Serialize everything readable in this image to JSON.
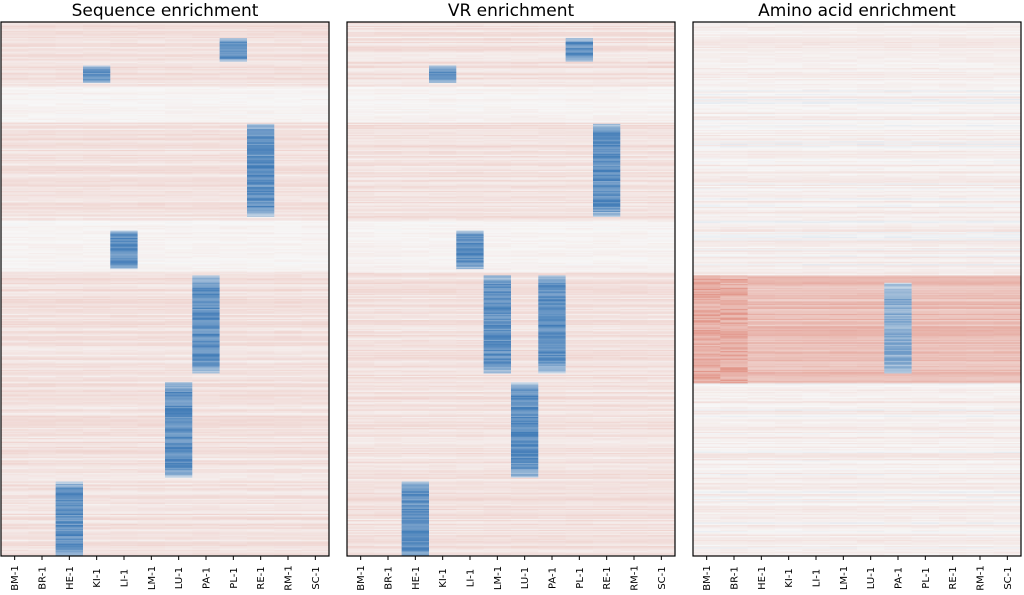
{
  "chart_data": [
    {
      "type": "heatmap",
      "title": "Sequence enrichment",
      "xlabel": "",
      "ylabel": "",
      "categories": [
        "BM-1",
        "BR-1",
        "HE-1",
        "KI-1",
        "LI-1",
        "LM-1",
        "LU-1",
        "PA-1",
        "PL-1",
        "RE-1",
        "RM-1",
        "SC-1"
      ],
      "colormap": "diverging blue-white-red",
      "rows": 430,
      "enriched_blocks": [
        {
          "tissue": "PL-1",
          "row_range": [
            13,
            31
          ]
        },
        {
          "tissue": "KI-1",
          "row_range": [
            35,
            48
          ]
        },
        {
          "tissue": "RE-1",
          "row_range": [
            82,
            156
          ]
        },
        {
          "tissue": "LI-1",
          "row_range": [
            168,
            198
          ]
        },
        {
          "tissue": "PA-1",
          "row_range": [
            204,
            282
          ]
        },
        {
          "tissue": "LU-1",
          "row_range": [
            290,
            366
          ]
        },
        {
          "tissue": "HE-1",
          "row_range": [
            370,
            430
          ]
        }
      ]
    },
    {
      "type": "heatmap",
      "title": "VR enrichment",
      "xlabel": "",
      "ylabel": "",
      "categories": [
        "BM-1",
        "BR-1",
        "HE-1",
        "KI-1",
        "LI-1",
        "LM-1",
        "LU-1",
        "PA-1",
        "PL-1",
        "RE-1",
        "RM-1",
        "SC-1"
      ],
      "colormap": "diverging blue-white-red",
      "rows": 430,
      "enriched_blocks": [
        {
          "tissue": "PL-1",
          "row_range": [
            13,
            31
          ]
        },
        {
          "tissue": "KI-1",
          "row_range": [
            35,
            48
          ]
        },
        {
          "tissue": "RE-1",
          "row_range": [
            82,
            156
          ]
        },
        {
          "tissue": "LI-1",
          "row_range": [
            168,
            198
          ]
        },
        {
          "tissue": "PA-1",
          "row_range": [
            204,
            282
          ]
        },
        {
          "tissue": "LM-1",
          "row_range": [
            204,
            282
          ]
        },
        {
          "tissue": "LU-1",
          "row_range": [
            290,
            366
          ]
        },
        {
          "tissue": "HE-1",
          "row_range": [
            370,
            430
          ]
        }
      ]
    },
    {
      "type": "heatmap",
      "title": "Amino acid enrichment",
      "xlabel": "",
      "ylabel": "",
      "categories": [
        "BM-1",
        "BR-1",
        "HE-1",
        "KI-1",
        "LI-1",
        "LM-1",
        "LU-1",
        "PA-1",
        "PL-1",
        "RE-1",
        "RM-1",
        "SC-1"
      ],
      "colormap": "diverging blue-white-red",
      "rows": 430,
      "enriched_blocks": [
        {
          "tissue": "BM-1",
          "row_range": [
            204,
            290
          ]
        },
        {
          "tissue": "BR-1",
          "row_range": [
            204,
            290
          ]
        },
        {
          "tissue": "PA-1",
          "row_range": [
            210,
            282
          ]
        }
      ]
    }
  ],
  "colors": {
    "enriched": "#2166ac",
    "neutral": "#f7f7f7",
    "depleted": "#d6604d"
  }
}
